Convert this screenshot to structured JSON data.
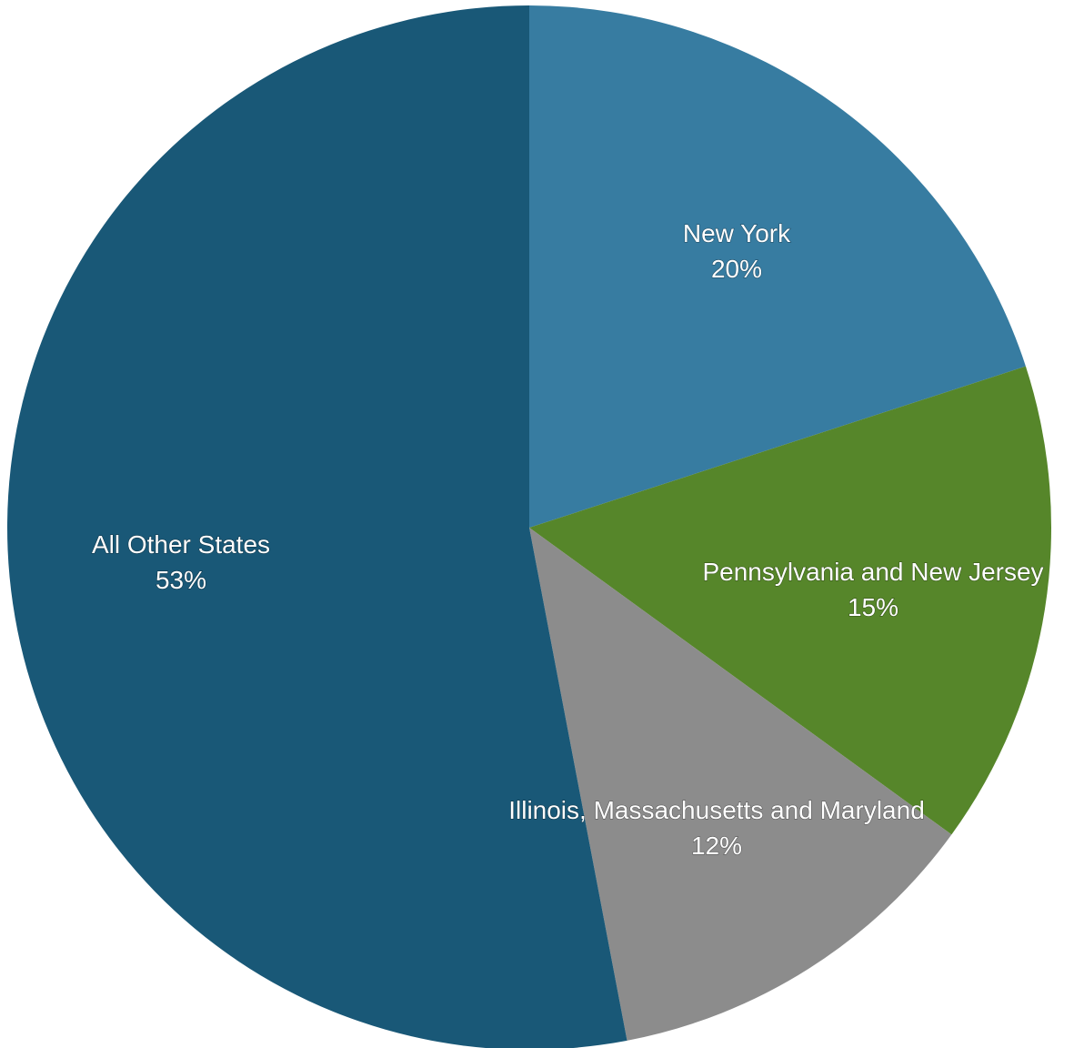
{
  "chart_data": {
    "type": "pie",
    "start_angle_deg": 0,
    "direction": "clockwise",
    "slices": [
      {
        "label": "New York",
        "value": 20,
        "value_label": "20%",
        "color": "#377ca1"
      },
      {
        "label": "Pennsylvania and New Jersey",
        "value": 15,
        "value_label": "15%",
        "color": "#56862a"
      },
      {
        "label": "Illinois, Massachusetts and Maryland",
        "value": 12,
        "value_label": "12%",
        "color": "#8c8c8c"
      },
      {
        "label": "All Other States",
        "value": 53,
        "value_label": "53%",
        "color": "#195877"
      }
    ]
  }
}
